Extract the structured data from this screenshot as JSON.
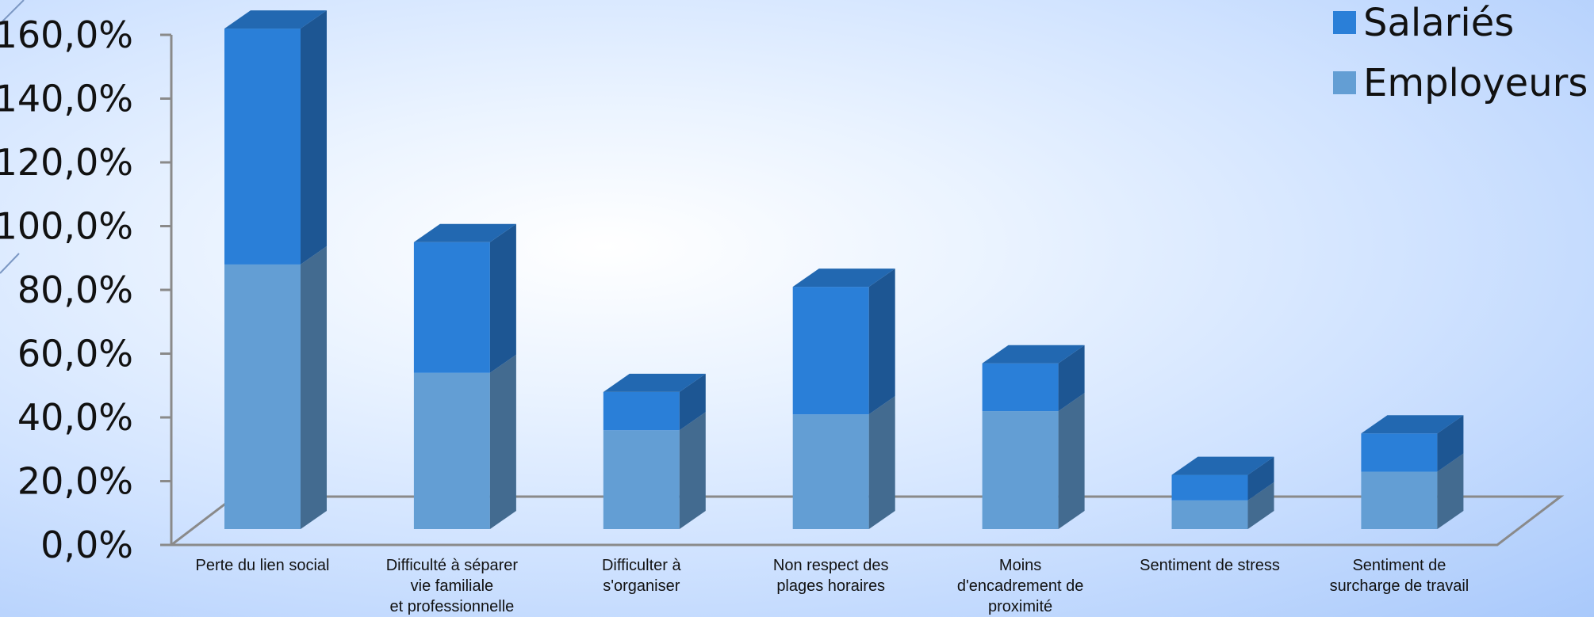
{
  "chart_data": {
    "type": "bar",
    "stacked": true,
    "three_d": true,
    "categories": [
      [
        "Perte du lien social"
      ],
      [
        "Difficulté à séparer",
        "vie familiale",
        "et professionnelle"
      ],
      [
        "Difficulter à",
        "s'organiser"
      ],
      [
        "Non respect des",
        "plages horaires"
      ],
      [
        "Moins",
        "d'encadrement de",
        "proximité"
      ],
      [
        "Sentiment de stress"
      ],
      [
        "Sentiment de",
        "surcharge de travail"
      ]
    ],
    "series": [
      {
        "name": "Employeurs",
        "values": [
          83,
          49,
          31,
          36,
          37,
          9,
          18
        ],
        "color": "#639ed4"
      },
      {
        "name": "Salariés",
        "values": [
          74,
          41,
          12,
          40,
          15,
          8,
          12
        ],
        "color": "#2a7fd8"
      }
    ],
    "ylim": [
      0,
      160
    ],
    "yticks": [
      "0,0%",
      "20,0%",
      "40,0%",
      "60,0%",
      "80,0%",
      "100,0%",
      "120,0%",
      "140,0%",
      "160,0%"
    ],
    "legend_position": "top-right",
    "gridlines": false
  }
}
